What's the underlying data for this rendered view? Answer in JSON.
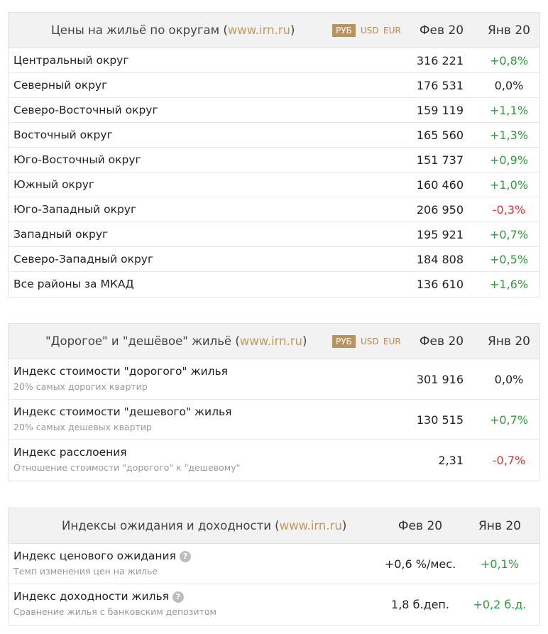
{
  "panel1": {
    "title_pre": "Цены на жильё по округам (",
    "site": "www.irn.ru",
    "title_post": ")",
    "currencies": [
      "РУБ",
      "USD",
      "EUR"
    ],
    "col_current": "Фев 20",
    "col_prev": "Янв 20",
    "rows": [
      {
        "name": "Центральный округ",
        "value": "316 221",
        "change": "+0,8%",
        "trend": "pos"
      },
      {
        "name": "Северный округ",
        "value": "176 531",
        "change": "0,0%",
        "trend": "zero"
      },
      {
        "name": "Северо-Восточный округ",
        "value": "159 119",
        "change": "+1,1%",
        "trend": "pos"
      },
      {
        "name": "Восточный округ",
        "value": "165 560",
        "change": "+1,3%",
        "trend": "pos"
      },
      {
        "name": "Юго-Восточный округ",
        "value": "151 737",
        "change": "+0,9%",
        "trend": "pos"
      },
      {
        "name": "Южный округ",
        "value": "160 460",
        "change": "+1,0%",
        "trend": "pos"
      },
      {
        "name": "Юго-Западный округ",
        "value": "206 950",
        "change": "-0,3%",
        "trend": "neg"
      },
      {
        "name": "Западный округ",
        "value": "195 921",
        "change": "+0,7%",
        "trend": "pos"
      },
      {
        "name": "Северо-Западный округ",
        "value": "184 808",
        "change": "+0,5%",
        "trend": "pos"
      },
      {
        "name": "Все районы за МКАД",
        "value": "136 610",
        "change": "+1,6%",
        "trend": "pos"
      }
    ]
  },
  "panel2": {
    "title_pre": "\"Дорогое\" и \"дешёвое\" жильё (",
    "site": "www.irn.ru",
    "title_post": ")",
    "currencies": [
      "РУБ",
      "USD",
      "EUR"
    ],
    "col_current": "Фев 20",
    "col_prev": "Янв 20",
    "rows": [
      {
        "name": "Индекс стоимости \"дорогого\" жилья",
        "sub": "20% самых дорогих квартир",
        "value": "301 916",
        "change": "0,0%",
        "trend": "zero"
      },
      {
        "name": "Индекс стоимости \"дешевого\" жилья",
        "sub": "20% самых дешевых квартир",
        "value": "130 515",
        "change": "+0,7%",
        "trend": "pos"
      },
      {
        "name": "Индекс расслоения",
        "sub": "Отношение стоимости \"дорогого\" к \"дешевому\"",
        "value": "2,31",
        "change": "-0,7%",
        "trend": "neg"
      }
    ]
  },
  "panel3": {
    "title_pre": "Индексы ожидания и доходности (",
    "site": "www.irn.ru",
    "title_post": ")",
    "col_current": "Фев 20",
    "col_prev": "Янв 20",
    "rows": [
      {
        "name": "Индекс ценового ожидания",
        "sub": "Темп изменения цен на жилье",
        "value": "+0,6 %/мес.",
        "change": "+0,1%",
        "trend": "pos",
        "help": "?"
      },
      {
        "name": "Индекс доходности жилья",
        "sub": "Сравнение жилья с банковским депозитом",
        "value": "1,8 б.деп.",
        "change": "+0,2 б.д.",
        "trend": "pos",
        "help": "?"
      }
    ]
  }
}
